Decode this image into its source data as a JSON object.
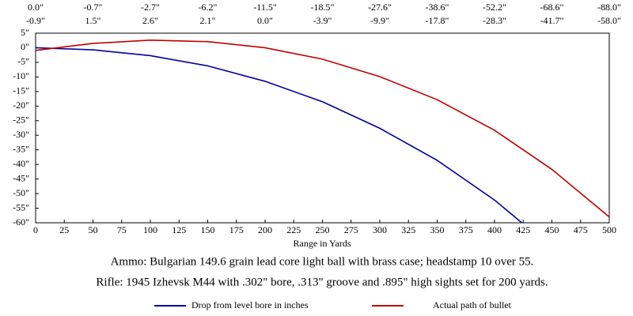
{
  "chart_data": {
    "type": "line",
    "xlabel": "Range in Yards",
    "annotations": [
      "Ammo:  Bulgarian 149.6 grain lead core light ball with brass case; headstamp 10 over 55.",
      "Rifle:  1945 Izhevsk M44 with .302\" bore, .313\" groove and .895\" high sights set for 200 yards."
    ],
    "x": [
      0,
      50,
      100,
      150,
      200,
      250,
      300,
      350,
      400,
      450,
      500
    ],
    "series": [
      {
        "name": "Drop from level bore in inches",
        "color": "#0000a0",
        "values": [
          0,
          -0.7,
          -2.7,
          -6.2,
          -11.5,
          -18.5,
          -27.6,
          -38.6,
          -52.2,
          -68.6,
          -88
        ],
        "value_labels": [
          "0.0\"",
          "-0.7\"",
          "-2.7\"",
          "-6.2\"",
          "-11.5\"",
          "-18.5\"",
          "-27.6\"",
          "-38.6\"",
          "-52.2\"",
          "-68.6\"",
          "-88.0\""
        ]
      },
      {
        "name": "Actual path of bullet",
        "color": "#c00000",
        "values": [
          -0.9,
          1.5,
          2.6,
          2.1,
          0,
          -3.9,
          -9.9,
          -17.8,
          -28.3,
          -41.7,
          -58
        ],
        "value_labels": [
          "-0.9\"",
          "1.5\"",
          "2.6\"",
          "2.1\"",
          "0.0\"",
          "-3.9\"",
          "-9.9\"",
          "-17.8\"",
          "-28.3\"",
          "-41.7\"",
          "-58.0\""
        ]
      }
    ],
    "xlim": [
      0,
      500
    ],
    "xticks": [
      0,
      25,
      50,
      75,
      100,
      125,
      150,
      175,
      200,
      225,
      250,
      275,
      300,
      325,
      350,
      375,
      400,
      425,
      450,
      475,
      500
    ],
    "ylim": [
      -60,
      5
    ],
    "yticks": [
      {
        "value": 5,
        "label": "5\""
      },
      {
        "value": 0,
        "label": "0\""
      },
      {
        "value": -5,
        "label": "-5\""
      },
      {
        "value": -10,
        "label": "-10\""
      },
      {
        "value": -15,
        "label": "-15\""
      },
      {
        "value": -20,
        "label": "-20\""
      },
      {
        "value": -25,
        "label": "-25\""
      },
      {
        "value": -30,
        "label": "-30\""
      },
      {
        "value": -35,
        "label": "-35\""
      },
      {
        "value": -40,
        "label": "-40\""
      },
      {
        "value": -45,
        "label": "-45\""
      },
      {
        "value": -50,
        "label": "-50\""
      },
      {
        "value": -55,
        "label": "-55\""
      },
      {
        "value": -60,
        "label": "-60\""
      }
    ],
    "grid": false
  }
}
